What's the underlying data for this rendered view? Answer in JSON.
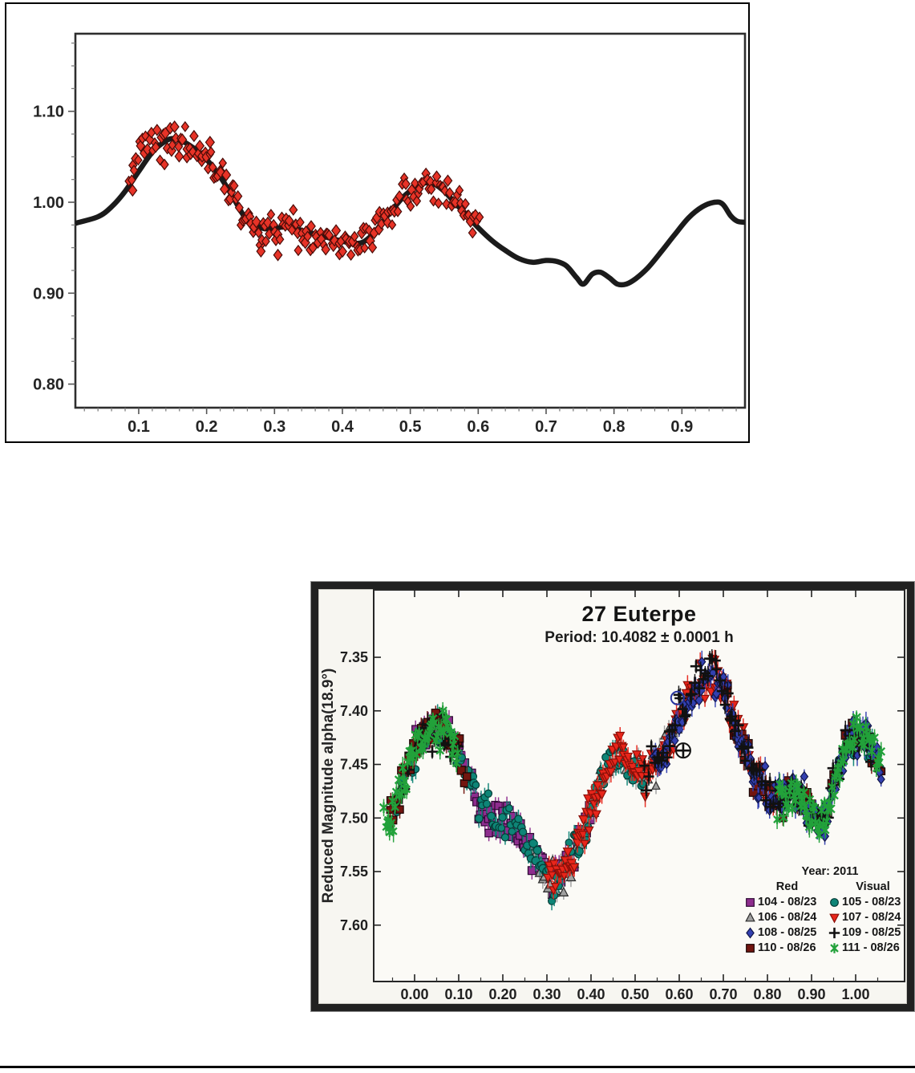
{
  "page": {
    "background": "#ffffff",
    "bottom_rule_color": "#000000"
  },
  "chart_data": [
    {
      "type": "scatter",
      "title": "",
      "xlabel": "",
      "ylabel": "",
      "x": {
        "tick_labels": [
          "0.1",
          "0.2",
          "0.3",
          "0.4",
          "0.5",
          "0.6",
          "0.7",
          "0.8",
          "0.9"
        ],
        "minor_step": 0.02,
        "range": [
          0.007,
          0.993
        ],
        "grid": false
      },
      "y": {
        "tick_labels": [
          "0.80",
          "0.90",
          "1.00",
          "1.10"
        ],
        "minor_step": 0.025,
        "range": [
          0.774,
          1.185
        ],
        "grid": false
      },
      "curve_color": "#1b1b1b",
      "model_curve": [
        [
          0.007,
          0.977
        ],
        [
          0.04,
          0.984
        ],
        [
          0.06,
          0.995
        ],
        [
          0.08,
          1.012
        ],
        [
          0.1,
          1.034
        ],
        [
          0.12,
          1.055
        ],
        [
          0.135,
          1.065
        ],
        [
          0.148,
          1.07
        ],
        [
          0.162,
          1.068
        ],
        [
          0.18,
          1.06
        ],
        [
          0.2,
          1.047
        ],
        [
          0.22,
          1.028
        ],
        [
          0.24,
          1.004
        ],
        [
          0.255,
          0.985
        ],
        [
          0.27,
          0.975
        ],
        [
          0.285,
          0.971
        ],
        [
          0.3,
          0.971
        ],
        [
          0.315,
          0.973
        ],
        [
          0.335,
          0.97
        ],
        [
          0.355,
          0.966
        ],
        [
          0.375,
          0.962
        ],
        [
          0.395,
          0.958
        ],
        [
          0.415,
          0.955
        ],
        [
          0.43,
          0.956
        ],
        [
          0.445,
          0.965
        ],
        [
          0.46,
          0.979
        ],
        [
          0.475,
          0.993
        ],
        [
          0.49,
          1.006
        ],
        [
          0.505,
          1.015
        ],
        [
          0.52,
          1.021
        ],
        [
          0.535,
          1.02
        ],
        [
          0.55,
          1.012
        ],
        [
          0.565,
          1.0
        ],
        [
          0.58,
          0.988
        ],
        [
          0.6,
          0.972
        ],
        [
          0.62,
          0.958
        ],
        [
          0.64,
          0.947
        ],
        [
          0.66,
          0.938
        ],
        [
          0.68,
          0.934
        ],
        [
          0.7,
          0.936
        ],
        [
          0.715,
          0.935
        ],
        [
          0.73,
          0.93
        ],
        [
          0.745,
          0.917
        ],
        [
          0.755,
          0.91
        ],
        [
          0.768,
          0.921
        ],
        [
          0.78,
          0.923
        ],
        [
          0.793,
          0.917
        ],
        [
          0.805,
          0.91
        ],
        [
          0.818,
          0.91
        ],
        [
          0.832,
          0.916
        ],
        [
          0.85,
          0.928
        ],
        [
          0.87,
          0.946
        ],
        [
          0.89,
          0.965
        ],
        [
          0.91,
          0.983
        ],
        [
          0.93,
          0.995
        ],
        [
          0.948,
          1.0
        ],
        [
          0.96,
          0.998
        ],
        [
          0.972,
          0.985
        ],
        [
          0.982,
          0.979
        ],
        [
          0.993,
          0.978
        ]
      ],
      "scatter": {
        "marker": "diamond",
        "color": "#e73327",
        "edge": "#4a0c08",
        "n": 210,
        "phase_range": [
          0.085,
          0.602
        ],
        "sigma": 0.0085,
        "outliers": [
          [
            0.091,
            1.013
          ],
          [
            0.28,
            0.946
          ],
          [
            0.305,
            0.942
          ],
          [
            0.335,
            0.947
          ],
          [
            0.205,
            1.066
          ]
        ]
      }
    },
    {
      "type": "scatter",
      "title": "27 Euterpe",
      "subtitle": "Period: 10.4082 ± 0.0001 h",
      "ylabel": "Reduced Magnitude alpha(18.9°)",
      "x": {
        "tick_labels": [
          "0.00",
          "0.10",
          "0.20",
          "0.30",
          "0.40",
          "0.50",
          "0.60",
          "0.70",
          "0.80",
          "0.90",
          "1.00"
        ],
        "minor_step": 0.05,
        "range": [
          -0.093,
          1.111
        ],
        "grid": false
      },
      "y": {
        "tick_labels": [
          "7.35",
          "7.40",
          "7.45",
          "7.50",
          "7.55",
          "7.60"
        ],
        "range": [
          7.287,
          7.653
        ],
        "inverted_magnitude_axis": true,
        "grid": false
      },
      "sigma": 0.0085,
      "mean_curve": [
        [
          -0.1,
          7.515
        ],
        [
          -0.07,
          7.508
        ],
        [
          -0.05,
          7.498
        ],
        [
          -0.03,
          7.472
        ],
        [
          -0.01,
          7.449
        ],
        [
          0.01,
          7.43
        ],
        [
          0.03,
          7.419
        ],
        [
          0.05,
          7.414
        ],
        [
          0.07,
          7.419
        ],
        [
          0.09,
          7.431
        ],
        [
          0.11,
          7.449
        ],
        [
          0.13,
          7.47
        ],
        [
          0.15,
          7.488
        ],
        [
          0.17,
          7.499
        ],
        [
          0.19,
          7.504
        ],
        [
          0.21,
          7.501
        ],
        [
          0.23,
          7.512
        ],
        [
          0.25,
          7.524
        ],
        [
          0.27,
          7.538
        ],
        [
          0.29,
          7.549
        ],
        [
          0.31,
          7.556
        ],
        [
          0.33,
          7.552
        ],
        [
          0.35,
          7.541
        ],
        [
          0.37,
          7.525
        ],
        [
          0.39,
          7.505
        ],
        [
          0.41,
          7.481
        ],
        [
          0.43,
          7.459
        ],
        [
          0.45,
          7.446
        ],
        [
          0.47,
          7.44
        ],
        [
          0.49,
          7.449
        ],
        [
          0.51,
          7.459
        ],
        [
          0.53,
          7.459
        ],
        [
          0.55,
          7.449
        ],
        [
          0.57,
          7.434
        ],
        [
          0.59,
          7.415
        ],
        [
          0.61,
          7.399
        ],
        [
          0.63,
          7.384
        ],
        [
          0.65,
          7.372
        ],
        [
          0.67,
          7.367
        ],
        [
          0.69,
          7.374
        ],
        [
          0.71,
          7.391
        ],
        [
          0.73,
          7.418
        ],
        [
          0.75,
          7.44
        ],
        [
          0.77,
          7.457
        ],
        [
          0.79,
          7.469
        ],
        [
          0.81,
          7.479
        ],
        [
          0.83,
          7.482
        ],
        [
          0.85,
          7.477
        ],
        [
          0.87,
          7.477
        ],
        [
          0.89,
          7.484
        ],
        [
          0.91,
          7.5
        ],
        [
          0.93,
          7.505
        ],
        [
          0.95,
          7.47
        ],
        [
          0.97,
          7.44
        ],
        [
          0.99,
          7.425
        ],
        [
          1.01,
          7.42
        ],
        [
          1.03,
          7.43
        ],
        [
          1.05,
          7.445
        ],
        [
          1.08,
          7.46
        ],
        [
          1.12,
          7.47
        ]
      ],
      "series": [
        {
          "id": 104,
          "label": "104 - 08/23",
          "marker": "square",
          "fill": "#8e2d8e",
          "edge": "#2d0a33",
          "ranges": [
            [
              0.0,
              0.4
            ]
          ],
          "n": 115
        },
        {
          "id": 105,
          "label": "105 - 08/23",
          "marker": "circle",
          "fill": "#0e8577",
          "edge": "#063c36",
          "ranges": [
            [
              -0.06,
              0.52
            ],
            [
              0.95,
              1.06
            ]
          ],
          "n": 150
        },
        {
          "id": 106,
          "label": "106 - 08/24",
          "marker": "triangle-up",
          "fill": "#a0a0a0",
          "edge": "#2b2b2b",
          "ranges": [
            [
              0.26,
              0.62
            ]
          ],
          "n": 85
        },
        {
          "id": 107,
          "label": "107 - 08/24",
          "marker": "triangle-down",
          "fill": "#e8261b",
          "edge": "#8a0f08",
          "ranges": [
            [
              0.3,
              0.82
            ]
          ],
          "n": 170
        },
        {
          "id": 108,
          "label": "108 - 08/25",
          "marker": "diamond",
          "fill": "#3340b0",
          "edge": "#11164a",
          "ranges": [
            [
              0.54,
              1.06
            ]
          ],
          "n": 150
        },
        {
          "id": 109,
          "label": "109 - 08/25",
          "marker": "plus",
          "fill": "#111111",
          "edge": "#111111",
          "ranges": [
            [
              -0.04,
              0.1
            ],
            [
              0.52,
              1.04
            ]
          ],
          "n": 125
        },
        {
          "id": 110,
          "label": "110 - 08/26",
          "marker": "square",
          "fill": "#72150f",
          "edge": "#1a0505",
          "ranges": [
            [
              -0.06,
              0.12
            ],
            [
              0.7,
              1.06
            ]
          ],
          "n": 110
        },
        {
          "id": 111,
          "label": "111 - 08/26",
          "marker": "asterisk",
          "fill": "#22a13a",
          "edge": "#22a13a",
          "ranges": [
            [
              -0.07,
              0.1
            ],
            [
              0.82,
              1.06
            ]
          ],
          "n": 130
        }
      ],
      "legend": {
        "year": "Year: 2011",
        "col_red": "Red",
        "col_visual": "Visual",
        "rows": [
          {
            "red_id": 104,
            "red_label": "104 - 08/23",
            "visual_id": 105,
            "visual_label": "105 - 08/23"
          },
          {
            "red_id": 106,
            "red_label": "106 - 08/24",
            "visual_id": 107,
            "visual_label": "107 - 08/24"
          },
          {
            "red_id": 108,
            "red_label": "108 - 08/25",
            "visual_id": 109,
            "visual_label": "109 - 08/25"
          },
          {
            "red_id": 110,
            "red_label": "110 - 08/26",
            "visual_id": 111,
            "visual_label": "111 - 08/26"
          }
        ],
        "position": "inside lower-right"
      },
      "special_markers": [
        {
          "type": "open-circle",
          "phase": 0.596,
          "mag": 7.388,
          "color": "#27349e"
        },
        {
          "type": "circle-plus",
          "phase": 0.609,
          "mag": 7.437,
          "color": "#111111"
        }
      ]
    }
  ]
}
